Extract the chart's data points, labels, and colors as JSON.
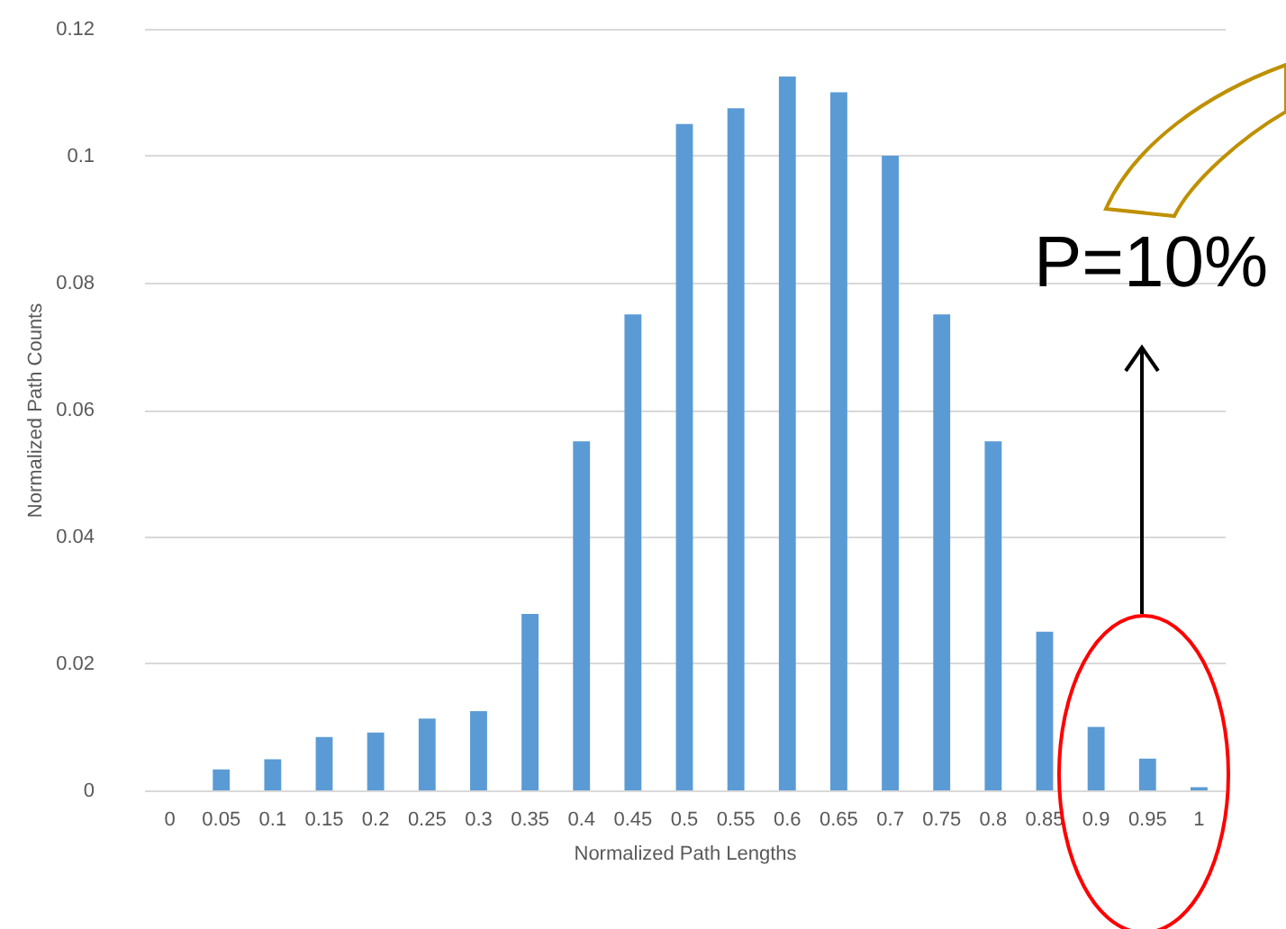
{
  "chart_data": {
    "type": "bar",
    "xlabel": "Normalized Path Lengths",
    "ylabel": "Normalized Path Counts",
    "categories": [
      "0",
      "0.05",
      "0.1",
      "0.15",
      "0.2",
      "0.25",
      "0.3",
      "0.35",
      "0.4",
      "0.45",
      "0.5",
      "0.55",
      "0.6",
      "0.65",
      "0.7",
      "0.75",
      "0.8",
      "0.85",
      "0.9",
      "0.95",
      "1"
    ],
    "values": [
      0,
      0.0033,
      0.0049,
      0.0084,
      0.0091,
      0.0113,
      0.0125,
      0.0278,
      0.055,
      0.075,
      0.105,
      0.1075,
      0.1125,
      0.11,
      0.1,
      0.075,
      0.055,
      0.025,
      0.01,
      0.005,
      0.0005
    ],
    "color": "#5b9bd5",
    "ylim": [
      0,
      0.12
    ],
    "yticks": [
      0,
      0.02,
      0.04,
      0.06,
      0.08,
      0.1,
      0.12
    ],
    "grid": "y",
    "annotations": [
      "P=10%"
    ]
  }
}
